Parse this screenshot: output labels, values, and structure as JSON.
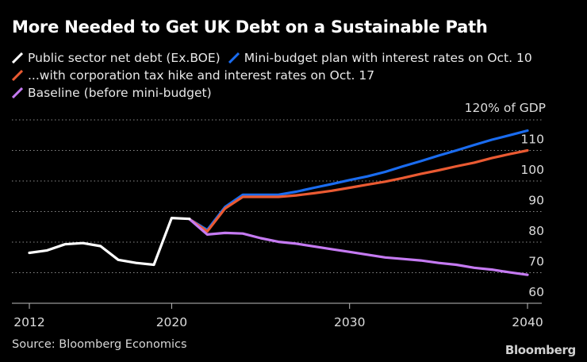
{
  "title": "More Needed to Get UK Debt on a Sustainable Path",
  "source": "Source: Bloomberg Economics",
  "brand": "Bloomberg",
  "chart_data": {
    "type": "line",
    "title": "More Needed to Get UK Debt on a Sustainable Path",
    "ylabel": "120% of GDP",
    "xlabel": "",
    "xlim": [
      2012,
      2040
    ],
    "ylim": [
      60,
      120
    ],
    "x_ticks": [
      2012,
      2020,
      2030,
      2040
    ],
    "y_ticks": [
      60,
      70,
      80,
      90,
      100,
      110
    ],
    "y_unit_label": "120% of GDP",
    "grid": true,
    "legend_position": "top-left",
    "series": [
      {
        "name": "Mini-budget plan with interest rates on Oct. 10",
        "color": "#1a6cf0",
        "x": [
          2021,
          2022,
          2023,
          2024,
          2025,
          2026,
          2027,
          2028,
          2029,
          2030,
          2031,
          2032,
          2033,
          2034,
          2035,
          2036,
          2037,
          2038,
          2039,
          2040
        ],
        "values": [
          87.5,
          84,
          91.5,
          95.5,
          95.5,
          95.5,
          96.5,
          97.8,
          99,
          100.3,
          101.5,
          103,
          104.8,
          106.5,
          108.3,
          110,
          111.8,
          113.5,
          115,
          116.5
        ]
      },
      {
        "name": "...with corporation tax hike and interest rates on Oct. 17",
        "color": "#ea5a32",
        "x": [
          2021,
          2022,
          2023,
          2024,
          2025,
          2026,
          2027,
          2028,
          2029,
          2030,
          2031,
          2032,
          2033,
          2034,
          2035,
          2036,
          2037,
          2038,
          2039,
          2040
        ],
        "values": [
          87.5,
          83.5,
          91,
          94.8,
          94.8,
          94.8,
          95.3,
          96,
          96.8,
          97.8,
          98.8,
          99.8,
          101,
          102.3,
          103.5,
          104.8,
          106,
          107.5,
          108.8,
          110
        ]
      },
      {
        "name": "Baseline (before mini-budget)",
        "color": "#c57af2",
        "x": [
          2021,
          2022,
          2023,
          2024,
          2025,
          2026,
          2027,
          2028,
          2029,
          2030,
          2031,
          2032,
          2033,
          2034,
          2035,
          2036,
          2037,
          2038,
          2039,
          2040
        ],
        "values": [
          87.5,
          82.5,
          83,
          82.8,
          81.3,
          80.1,
          79.5,
          78.6,
          77.7,
          76.8,
          75.9,
          75,
          74.5,
          74,
          73.2,
          72.6,
          71.6,
          71,
          70.1,
          69.3
        ]
      },
      {
        "name": "Public sector net debt (Ex.BOE)",
        "color": "#ffffff",
        "x": [
          2012,
          2013,
          2014,
          2015,
          2016,
          2017,
          2018,
          2019,
          2020,
          2021
        ],
        "values": [
          76.5,
          77.3,
          79.3,
          79.7,
          78.7,
          74.2,
          73.2,
          72.6,
          87.9,
          87.6
        ]
      }
    ],
    "legend": [
      [
        "Public sector net debt (Ex.BOE)",
        "Mini-budget plan with interest rates on Oct. 10"
      ],
      [
        "...with corporation tax hike and interest rates on Oct. 17"
      ],
      [
        "Baseline (before mini-budget)"
      ]
    ]
  }
}
